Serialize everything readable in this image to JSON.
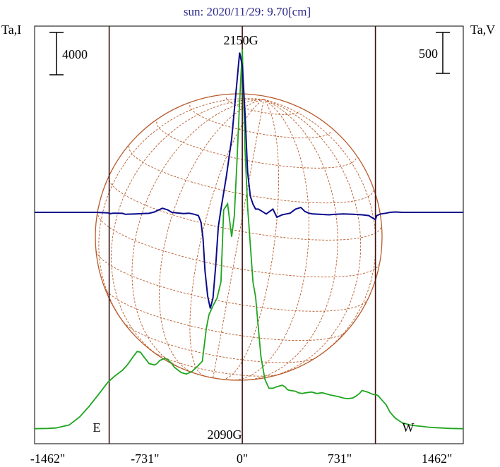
{
  "chart_data": {
    "type": "line",
    "title": "sun: 2020/11/29: 9.70[cm]",
    "ylabel_left": "Ta,I",
    "ylabel_right": "Ta,V",
    "scalebar_left": "4000",
    "scalebar_right": "500",
    "xlim": [
      -1560,
      1660
    ],
    "x_ticks": [
      {
        "value": -1462,
        "label": "-1462\""
      },
      {
        "value": -731,
        "label": "-731\""
      },
      {
        "value": 0,
        "label": "0\""
      },
      {
        "value": 731,
        "label": "731\""
      },
      {
        "value": 1462,
        "label": "1462\""
      }
    ],
    "limb_lines": [
      -1000,
      0,
      1000
    ],
    "annotations": {
      "peak_label": "2150G",
      "dip_label": "2090G",
      "east_label": "E",
      "west_label": "W"
    },
    "colors": {
      "intensity": "#1fa51f",
      "polarization": "#0a0a8a",
      "disk": "#b85a2a",
      "limb": "#3a1010",
      "title": "#2a2a8a"
    },
    "series": [
      {
        "key": "I",
        "color": "#1fa51f",
        "x": [
          -1560,
          -1460,
          -1400,
          -1300,
          -1220,
          -1150,
          -1070,
          -1010,
          -960,
          -900,
          -860,
          -820,
          -790,
          -765,
          -740,
          -700,
          -660,
          -640,
          -620,
          -580,
          -560,
          -530,
          -510,
          -460,
          -420,
          -380,
          -350,
          -300,
          -270,
          -250,
          -220,
          -190,
          -160,
          -140,
          -110,
          -80,
          -60,
          -40,
          -20,
          0,
          20,
          40,
          60,
          80,
          100,
          120,
          140,
          170,
          200,
          230,
          260,
          300,
          320,
          340,
          360,
          400,
          420,
          450,
          480,
          520,
          560,
          600,
          620,
          660,
          720,
          760,
          790,
          830,
          850,
          880,
          900,
          940,
          980,
          1010,
          1020,
          1040,
          1080,
          1110,
          1150,
          1200,
          1260,
          1300,
          1360,
          1400,
          1460,
          1500,
          1560,
          1660
        ],
        "y": [
          20,
          22,
          25,
          45,
          100,
          170,
          260,
          330,
          370,
          410,
          450,
          500,
          535,
          530,
          500,
          455,
          445,
          455,
          475,
          490,
          480,
          455,
          430,
          395,
          385,
          400,
          425,
          470,
          690,
          780,
          840,
          890,
          1000,
          1480,
          1520,
          1300,
          1440,
          1800,
          2200,
          2550,
          1900,
          1500,
          1250,
          1000,
          900,
          700,
          500,
          350,
          290,
          290,
          300,
          310,
          300,
          280,
          275,
          270,
          260,
          255,
          260,
          265,
          255,
          260,
          255,
          245,
          235,
          225,
          220,
          225,
          235,
          255,
          275,
          265,
          250,
          245,
          240,
          220,
          180,
          130,
          90,
          60,
          45,
          40,
          35,
          30,
          27,
          25,
          22,
          20
        ]
      },
      {
        "key": "V",
        "color": "#0a0a8a",
        "x": [
          -1560,
          -1100,
          -1010,
          -990,
          -970,
          -900,
          -880,
          -800,
          -750,
          -700,
          -660,
          -640,
          -600,
          -560,
          -530,
          -470,
          -440,
          -400,
          -370,
          -330,
          -310,
          -295,
          -280,
          -260,
          -240,
          -220,
          -200,
          -180,
          -160,
          -120,
          -80,
          -40,
          -20,
          0,
          20,
          40,
          60,
          80,
          100,
          120,
          150,
          180,
          230,
          260,
          300,
          330,
          360,
          400,
          440,
          470,
          500,
          530,
          580,
          650,
          700,
          760,
          830,
          900,
          950,
          980,
          1000,
          1010,
          1040,
          1080,
          1110,
          1150,
          1200,
          1300,
          1660
        ],
        "y": [
          0,
          0,
          -3,
          -8,
          -5,
          -6,
          -12,
          -10,
          -8,
          -6,
          2,
          10,
          25,
          15,
          0,
          -5,
          -8,
          -5,
          -10,
          -20,
          -60,
          -160,
          -360,
          -515,
          -590,
          -525,
          -330,
          -90,
          20,
          220,
          450,
          800,
          980,
          900,
          620,
          250,
          100,
          50,
          20,
          20,
          5,
          -10,
          20,
          -30,
          -15,
          -10,
          -5,
          20,
          30,
          5,
          -5,
          -10,
          -12,
          -15,
          -12,
          -10,
          -12,
          -15,
          -20,
          -35,
          -45,
          -20,
          -10,
          -5,
          0,
          2,
          0,
          0,
          0
        ]
      }
    ]
  }
}
